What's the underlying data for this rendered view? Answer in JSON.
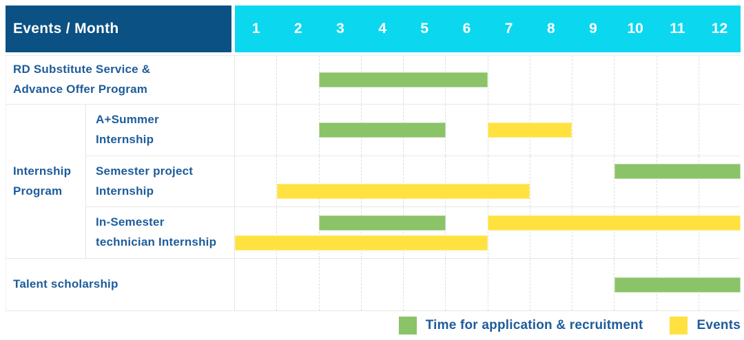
{
  "title": "Events / Month",
  "colors": {
    "header_bg": "#0B5183",
    "months_bg": "#0BD8EF",
    "green": "#8BC368",
    "yellow": "#FFE23F",
    "text_blue": "#1D5C9B",
    "gridline": "#DEDEDE"
  },
  "chart_data": {
    "type": "gantt",
    "title": "Events / Month",
    "x_unit": "month",
    "months": [
      "1",
      "2",
      "3",
      "4",
      "5",
      "6",
      "7",
      "8",
      "9",
      "10",
      "11",
      "12"
    ],
    "x_range": [
      1,
      12
    ],
    "grid": "dashed-vertical",
    "legend_position": "bottom-right",
    "legend": [
      {
        "kind": "application",
        "color": "#8BC368",
        "label": "Time for application & recruitment"
      },
      {
        "kind": "event",
        "color": "#FFE23F",
        "label": "Events"
      }
    ],
    "rows": [
      {
        "group": "",
        "label": "RD Substitute Service &\nAdvance Offer Program",
        "lines": 1,
        "bars": [
          {
            "kind": "application",
            "start_month": 3,
            "end_month": 6,
            "line": 0
          }
        ]
      },
      {
        "group": "Internship\nProgram",
        "label": "A+Summer\nInternship",
        "lines": 1,
        "bars": [
          {
            "kind": "application",
            "start_month": 3,
            "end_month": 5,
            "line": 0
          },
          {
            "kind": "event",
            "start_month": 7,
            "end_month": 8,
            "line": 0
          }
        ]
      },
      {
        "group": "Internship\nProgram",
        "label": "Semester project\nInternship",
        "lines": 2,
        "bars": [
          {
            "kind": "application",
            "start_month": 10,
            "end_month": 12,
            "line": 0
          },
          {
            "kind": "event",
            "start_month": 2,
            "end_month": 7,
            "line": 1
          }
        ]
      },
      {
        "group": "Internship\nProgram",
        "label": "In-Semester\ntechnician Internship",
        "lines": 2,
        "bars": [
          {
            "kind": "application",
            "start_month": 3,
            "end_month": 5,
            "line": 0
          },
          {
            "kind": "event",
            "start_month": 7,
            "end_month": 12,
            "line": 0
          },
          {
            "kind": "event",
            "start_month": 1,
            "end_month": 6,
            "line": 1
          }
        ]
      },
      {
        "group": "",
        "label": "Talent scholarship",
        "lines": 1,
        "bars": [
          {
            "kind": "application",
            "start_month": 10,
            "end_month": 12,
            "line": 0
          }
        ]
      }
    ]
  }
}
